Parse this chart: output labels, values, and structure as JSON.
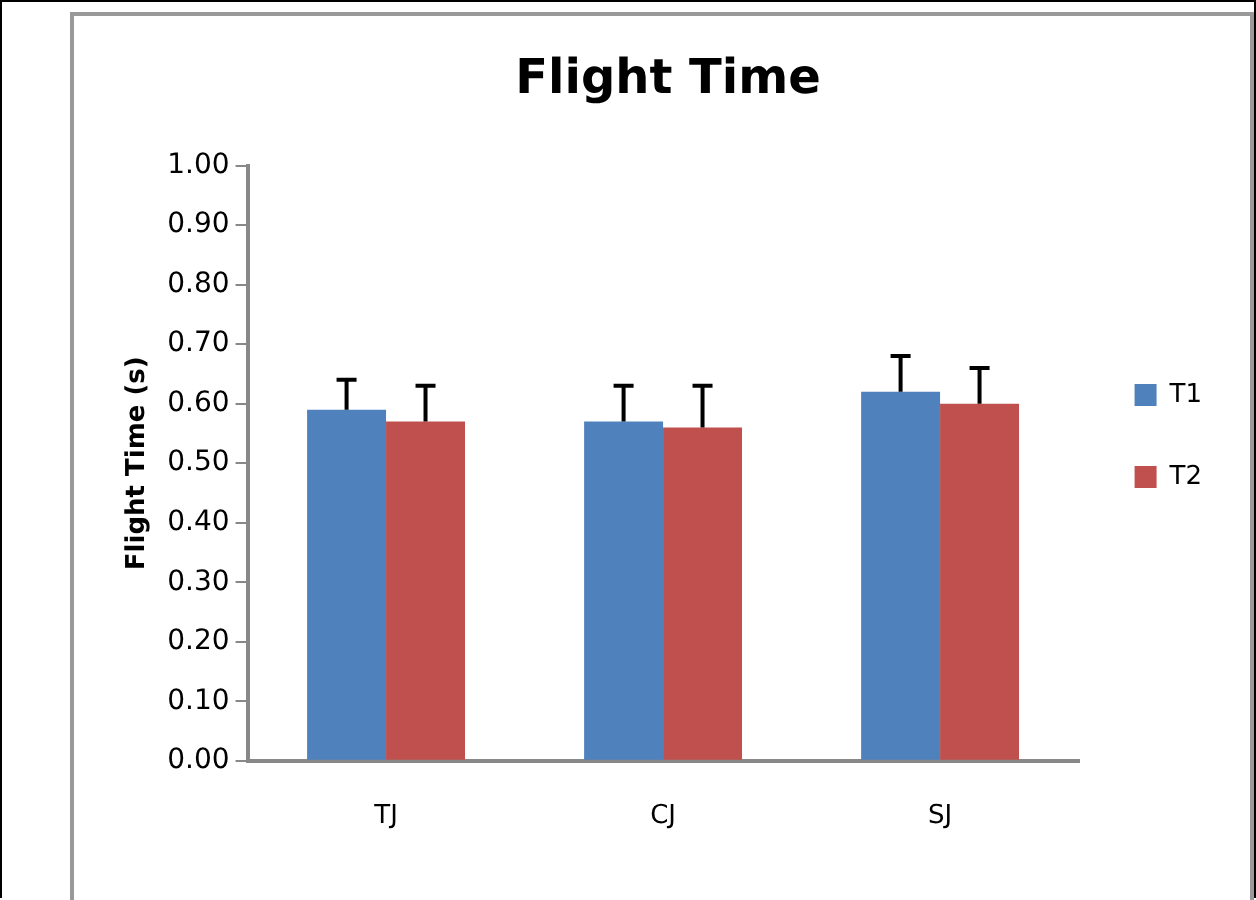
{
  "chart_data": {
    "type": "bar",
    "title": "Flight Time",
    "ylabel": "Flight Time (s)",
    "categories": [
      "TJ",
      "CJ",
      "SJ"
    ],
    "series": [
      {
        "name": "T1",
        "color": "#4f81bd",
        "values": [
          0.59,
          0.57,
          0.62
        ],
        "errors": [
          [
            0.59,
            0.64
          ],
          [
            0.57,
            0.63
          ],
          [
            0.62,
            0.68
          ]
        ]
      },
      {
        "name": "T2",
        "color": "#c0504d",
        "values": [
          0.57,
          0.56,
          0.6
        ],
        "errors": [
          [
            0.57,
            0.63
          ],
          [
            0.56,
            0.63
          ],
          [
            0.6,
            0.66
          ]
        ]
      }
    ],
    "ylim": [
      0,
      1
    ],
    "yticks": [
      {
        "value": 0,
        "label": "0.00"
      },
      {
        "value": 0.1,
        "label": "0.10"
      },
      {
        "value": 0.2,
        "label": "0.20"
      },
      {
        "value": 0.3,
        "label": "0.30"
      },
      {
        "value": 0.4,
        "label": "0.40"
      },
      {
        "value": 0.5,
        "label": "0.50"
      },
      {
        "value": 0.6,
        "label": "0.60"
      },
      {
        "value": 0.7,
        "label": "0.70"
      },
      {
        "value": 0.8,
        "label": "0.80"
      },
      {
        "value": 0.9,
        "label": "0.90"
      },
      {
        "value": 1,
        "label": "1.00"
      }
    ],
    "grid": false,
    "legend": "right"
  }
}
